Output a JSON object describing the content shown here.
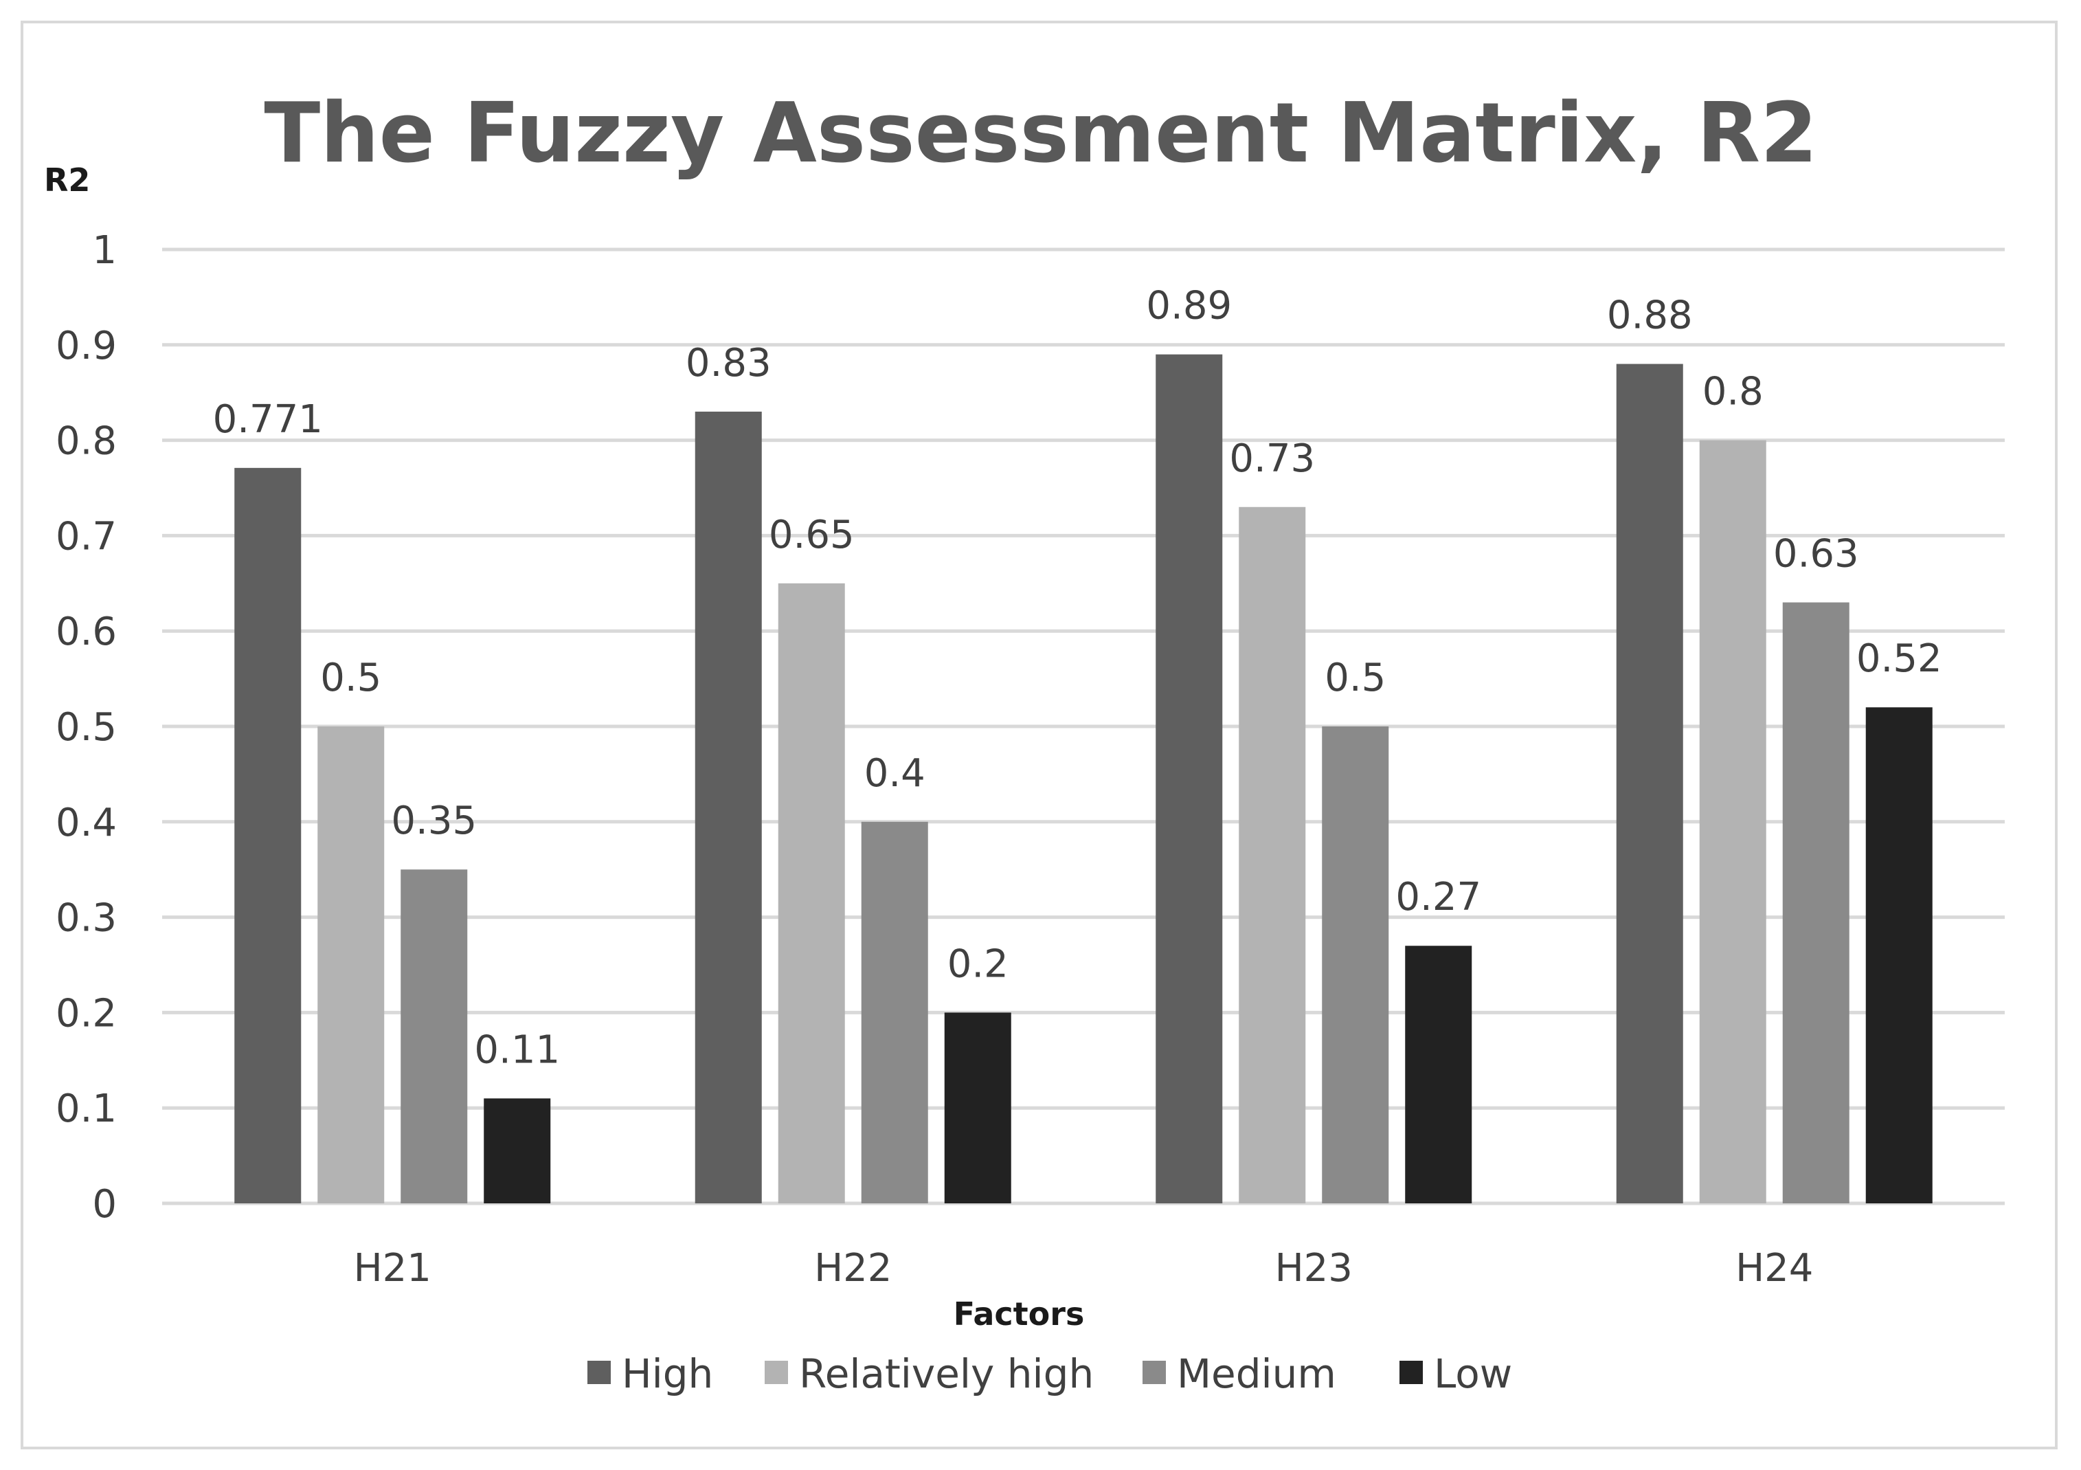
{
  "chart_data": {
    "type": "bar",
    "title": "The Fuzzy Assessment Matrix, R2",
    "xlabel": "Factors",
    "ylabel": "R2",
    "categories": [
      "H21",
      "H22",
      "H23",
      "H24"
    ],
    "ylim": [
      0,
      1
    ],
    "yticks": [
      "0",
      "0.1",
      "0.2",
      "0.3",
      "0.4",
      "0.5",
      "0.6",
      "0.7",
      "0.8",
      "0.9",
      "1"
    ],
    "grid": true,
    "legend_position": "bottom",
    "series": [
      {
        "name": "High",
        "color": "#5f5f5f",
        "values": [
          0.771,
          0.83,
          0.89,
          0.88
        ],
        "labels": [
          "0.771",
          "0.83",
          "0.89",
          "0.88"
        ]
      },
      {
        "name": "Relatively high",
        "color": "#b3b3b3",
        "values": [
          0.5,
          0.65,
          0.73,
          0.8
        ],
        "labels": [
          "0.5",
          "0.65",
          "0.73",
          "0.8"
        ]
      },
      {
        "name": "Medium",
        "color": "#8a8a8a",
        "values": [
          0.35,
          0.4,
          0.5,
          0.63
        ],
        "labels": [
          "0.35",
          "0.4",
          "0.5",
          "0.63"
        ]
      },
      {
        "name": "Low",
        "color": "#222222",
        "values": [
          0.11,
          0.2,
          0.27,
          0.52
        ],
        "labels": [
          "0.11",
          "0.2",
          "0.27",
          "0.52"
        ]
      }
    ]
  }
}
